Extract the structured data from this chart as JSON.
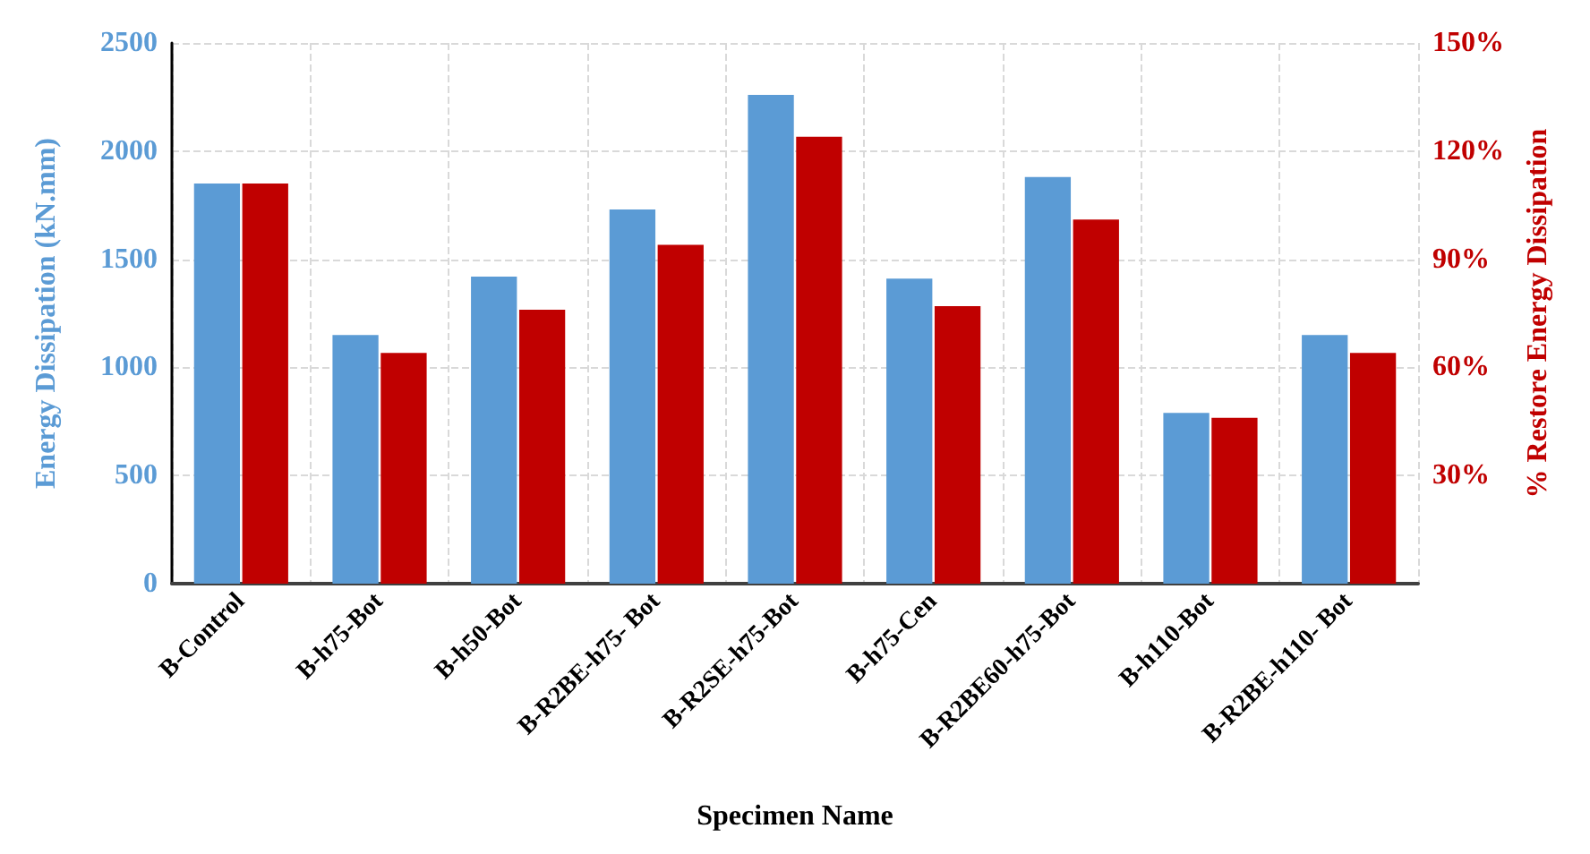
{
  "chart_data": {
    "type": "bar",
    "xlabel": "Specimen Name",
    "ylabel": "Energy Dissipation (kN.mm)",
    "y2label": "% Restore Energy Dissipation",
    "categories": [
      "B-Control",
      "B-h75-Bot",
      "B-h50-Bot",
      "B-R2BE-h75- Bot",
      "B-R2SE-h75-Bot",
      "B-h75-Cen",
      "B-R2BE60-h75-Bot",
      "B-h110-Bot",
      "B-R2BE-h110- Bot"
    ],
    "series": [
      {
        "color": "#5b9bd5",
        "values": [
          1850,
          1150,
          1420,
          1730,
          2260,
          1410,
          1880,
          790,
          1150
        ]
      },
      {
        "color": "#c00000",
        "axis": "y2",
        "values": [
          111,
          64,
          76,
          94,
          124,
          77,
          101,
          46,
          64
        ]
      }
    ],
    "ylim": [
      0,
      2500
    ],
    "yticks": [
      0,
      500,
      1000,
      1500,
      2000,
      2500
    ],
    "y2lim": [
      0,
      150
    ],
    "y2ticks": [
      {
        "value": 0,
        "label": null
      },
      {
        "value": 30,
        "label": "30%"
      },
      {
        "value": 60,
        "label": "60%"
      },
      {
        "value": 90,
        "label": "90%"
      },
      {
        "value": 120,
        "label": "120%"
      },
      {
        "value": 150,
        "label": "150%"
      }
    ],
    "grid": true
  }
}
